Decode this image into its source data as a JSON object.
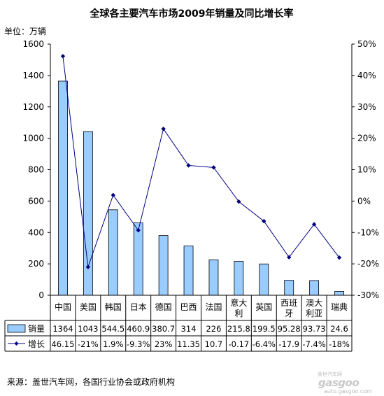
{
  "chart_data": {
    "type": "bar+line",
    "title": "全球各主要汽车市场2009年销量及同比增长率",
    "unit_label": "单位：万辆",
    "categories": [
      "中国",
      "美国",
      "韩国",
      "日本",
      "德国",
      "巴西",
      "法国",
      "意大利",
      "英国",
      "西班牙",
      "澳大利亚",
      "瑞典"
    ],
    "category_lines": [
      [
        "中国"
      ],
      [
        "美国"
      ],
      [
        "韩国"
      ],
      [
        "日本"
      ],
      [
        "德国"
      ],
      [
        "巴西"
      ],
      [
        "法国"
      ],
      [
        "意大",
        "利"
      ],
      [
        "英国"
      ],
      [
        "西班",
        "牙"
      ],
      [
        "澳大",
        "利亚"
      ],
      [
        "瑞典"
      ]
    ],
    "y_left": {
      "min": 0,
      "max": 1600,
      "ticks": [
        "0",
        "200",
        "400",
        "600",
        "800",
        "1000",
        "1200",
        "1400",
        "1600"
      ]
    },
    "y_right": {
      "min": -30,
      "max": 50,
      "ticks": [
        "-30%",
        "-20%",
        "-10%",
        "0%",
        "10%",
        "20%",
        "30%",
        "40%",
        "50%"
      ]
    },
    "series": [
      {
        "name": "销量",
        "kind": "bar",
        "axis": "left",
        "color": "#99ccff",
        "values": [
          1364,
          1043,
          544.5,
          460.9,
          380.7,
          314,
          226,
          215.8,
          199.5,
          95.28,
          93.73,
          24.6
        ],
        "labels": [
          "1364",
          "1043",
          "544.5",
          "460.9",
          "380.7",
          "314",
          "226",
          "215.8",
          "199.5",
          "95.28",
          "93.73",
          "24.6"
        ]
      },
      {
        "name": "增长",
        "kind": "line",
        "axis": "right",
        "color": "#000080",
        "values": [
          46.15,
          -21,
          1.9,
          -9.3,
          23,
          11.35,
          10.7,
          -0.17,
          -6.4,
          -17.9,
          -7.4,
          -18
        ],
        "labels": [
          "46.15",
          "-21%",
          "1.9%",
          "-9.3%",
          "23%",
          "11.35",
          "10.7",
          "-0.17",
          "-6.4%",
          "-17.9",
          "-7.4%",
          "-18%"
        ]
      }
    ]
  },
  "footer": {
    "source": "来源：盖世汽车网，各国行业协会或政府机构",
    "watermark_cn": "盖世汽车网",
    "watermark_logo": "gasgoo",
    "watermark_url": "auto.gasgoo.com"
  }
}
